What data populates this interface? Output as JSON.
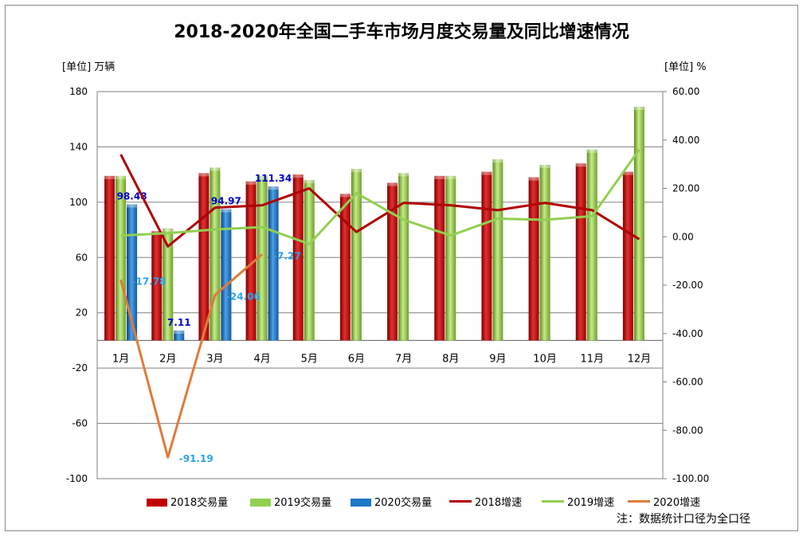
{
  "title": "2018-2020年全国二手车市场月度交易量及同比增速情况",
  "unit_left": "[单位] 万辆",
  "unit_right": "[单位] %",
  "note": "注：数据统计口径为全口径",
  "colors": {
    "s2018": "#c00000",
    "s2019": "#92d050",
    "s2020": "#1f77c8",
    "g2018": "#b00000",
    "g2019": "#92d050",
    "g2020": "#e07b39",
    "label2020": "#0000cc",
    "label2020growth": "#2aa3e8"
  },
  "chart_data": {
    "type": "bar",
    "categories": [
      "1月",
      "2月",
      "3月",
      "4月",
      "5月",
      "6月",
      "7月",
      "8月",
      "9月",
      "10月",
      "11月",
      "12月"
    ],
    "series": [
      {
        "name": "2018交易量",
        "kind": "bar",
        "axis": "left",
        "values": [
          119,
          79,
          121,
          115,
          120,
          106,
          114,
          119,
          122,
          118,
          128,
          122
        ]
      },
      {
        "name": "2019交易量",
        "kind": "bar",
        "axis": "left",
        "values": [
          119,
          81,
          125,
          119,
          116,
          124,
          121,
          119,
          131,
          127,
          138,
          169
        ]
      },
      {
        "name": "2020交易量",
        "kind": "bar",
        "axis": "left",
        "values": [
          98.48,
          7.11,
          94.97,
          111.34,
          null,
          null,
          null,
          null,
          null,
          null,
          null,
          null
        ]
      },
      {
        "name": "2018增速",
        "kind": "line",
        "axis": "right",
        "values": [
          34,
          -4,
          12,
          13,
          20,
          2,
          14,
          13,
          11,
          14,
          11,
          -1
        ]
      },
      {
        "name": "2019增速",
        "kind": "line",
        "axis": "right",
        "values": [
          0.5,
          1.5,
          3,
          4,
          -3,
          18,
          7,
          0.5,
          7.5,
          7,
          8.5,
          36
        ]
      },
      {
        "name": "2020增速",
        "kind": "line",
        "axis": "right",
        "values": [
          -17.78,
          -91.19,
          -24.06,
          -7.27,
          null,
          null,
          null,
          null,
          null,
          null,
          null,
          null
        ]
      }
    ],
    "bar_labels_2020": [
      "98.48",
      "7.11",
      "94.97",
      "111.34"
    ],
    "growth_labels_2020": [
      "-17.78",
      "-91.19",
      "-24.06",
      "-7.27"
    ],
    "left_ticks": [
      "180",
      "140",
      "100",
      "60",
      "20",
      "-20",
      "-60",
      "-100"
    ],
    "right_ticks": [
      "60.00",
      "40.00",
      "20.00",
      "0.00",
      "-20.00",
      "-40.00",
      "-60.00",
      "-80.00",
      "-100.00"
    ],
    "ylim_left": [
      -100,
      180
    ],
    "ylim_right": [
      -100,
      60
    ],
    "grid": true,
    "legend_position": "bottom"
  }
}
